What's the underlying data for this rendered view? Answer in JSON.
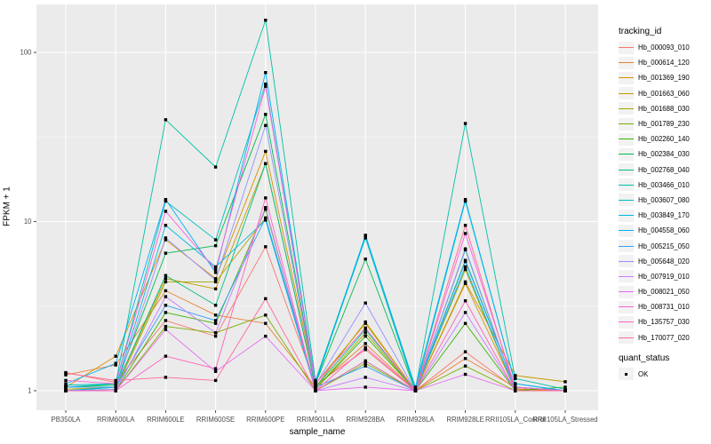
{
  "chart_data": {
    "type": "line",
    "title": "",
    "xlabel": "sample_name",
    "ylabel": "FPKM + 1",
    "y_scale": "log10",
    "y_ticks": [
      1,
      10,
      100
    ],
    "y_minor_ticks": [
      3.162,
      31.623
    ],
    "ylim": [
      0.78,
      185
    ],
    "grid": "on",
    "point_shape": "square",
    "point_color": "#000000",
    "categories": [
      "PB350LA",
      "RRIM600LA",
      "RRIM600LE",
      "RRIM600SE",
      "RRIM600PE",
      "RRIM901LA",
      "RRIM928BA",
      "RRIM928LA",
      "RRIM928LE",
      "RRII105LA_Control",
      "RRII105LA_Stressed"
    ],
    "legend": {
      "title": "tracking_id",
      "position": "right"
    },
    "quant_legend": {
      "title": "quant_status",
      "items": [
        {
          "label": "OK",
          "shape": "square",
          "color": "#000000"
        }
      ]
    },
    "series": [
      {
        "name": "Hb_000093_010",
        "color": "#F8766D",
        "values": [
          1.28,
          1.12,
          2.6,
          2.1,
          7.1,
          1.08,
          1.75,
          1.0,
          1.7,
          1.03,
          1.0
        ]
      },
      {
        "name": "Hb_000614_120",
        "color": "#EA8331",
        "values": [
          1.24,
          1.42,
          3.9,
          2.8,
          2.5,
          1.05,
          1.9,
          1.0,
          1.55,
          1.05,
          1.0
        ]
      },
      {
        "name": "Hb_001369_190",
        "color": "#D89000",
        "values": [
          1.05,
          1.6,
          7.8,
          4.6,
          26,
          1.1,
          2.5,
          1.0,
          4.3,
          1.02,
          1.0
        ]
      },
      {
        "name": "Hb_001663_060",
        "color": "#C09B00",
        "values": [
          1.02,
          1.05,
          4.6,
          4.0,
          22,
          1.05,
          2.55,
          1.0,
          4.4,
          1.23,
          1.13
        ]
      },
      {
        "name": "Hb_001688_030",
        "color": "#A3A500",
        "values": [
          1.0,
          1.02,
          4.4,
          4.4,
          10.5,
          1.02,
          2.2,
          1.0,
          5.2,
          1.0,
          1.0
        ]
      },
      {
        "name": "Hb_001789_230",
        "color": "#7CAE00",
        "values": [
          1.0,
          1.0,
          2.4,
          2.2,
          2.8,
          1.0,
          1.45,
          1.0,
          1.4,
          1.0,
          1.0
        ]
      },
      {
        "name": "Hb_002260_140",
        "color": "#39B600",
        "values": [
          1.0,
          1.0,
          2.9,
          2.5,
          11.8,
          1.02,
          2.1,
          1.0,
          2.5,
          1.0,
          1.05
        ]
      },
      {
        "name": "Hb_002384_030",
        "color": "#00BB4E",
        "values": [
          1.05,
          1.08,
          6.5,
          7.2,
          43,
          1.1,
          6.0,
          1.0,
          5.9,
          1.05,
          1.0
        ]
      },
      {
        "name": "Hb_002768_040",
        "color": "#00BF7D",
        "values": [
          1.0,
          1.05,
          4.8,
          3.2,
          22,
          1.05,
          2.3,
          1.0,
          6.8,
          1.0,
          1.0
        ]
      },
      {
        "name": "Hb_003466_010",
        "color": "#00C1A3",
        "values": [
          1.05,
          1.1,
          40,
          21,
          155,
          1.15,
          8.2,
          1.02,
          38,
          1.18,
          1.02
        ]
      },
      {
        "name": "Hb_003607_080",
        "color": "#00BFC4",
        "values": [
          1.08,
          1.1,
          13.2,
          7.8,
          65,
          1.12,
          8.0,
          1.0,
          13.2,
          1.1,
          1.0
        ]
      },
      {
        "name": "Hb_003849_170",
        "color": "#00BAE0",
        "values": [
          1.0,
          1.05,
          9.5,
          5.4,
          10.2,
          1.0,
          1.5,
          1.0,
          5.4,
          1.0,
          1.0
        ]
      },
      {
        "name": "Hb_004558_060",
        "color": "#00B0F6",
        "values": [
          1.1,
          1.45,
          13.5,
          5.0,
          76,
          1.1,
          8.3,
          1.05,
          13.5,
          1.1,
          1.0
        ]
      },
      {
        "name": "Hb_005215_050",
        "color": "#35A2FF",
        "values": [
          1.05,
          1.05,
          3.2,
          2.6,
          10.5,
          1.05,
          1.4,
          1.0,
          5.8,
          1.05,
          1.0
        ]
      },
      {
        "name": "Hb_005648_020",
        "color": "#9590FF",
        "values": [
          1.0,
          1.02,
          8.0,
          4.5,
          37,
          1.08,
          3.3,
          1.0,
          6.9,
          1.0,
          1.0
        ]
      },
      {
        "name": "Hb_007919_010",
        "color": "#C77CFF",
        "values": [
          1.0,
          1.0,
          3.6,
          2.2,
          12.1,
          1.0,
          1.2,
          1.0,
          2.9,
          1.0,
          1.0
        ]
      },
      {
        "name": "Hb_008021_050",
        "color": "#E76BF3",
        "values": [
          1.0,
          1.0,
          2.3,
          1.3,
          2.1,
          1.0,
          1.05,
          1.0,
          1.25,
          1.0,
          1.0
        ]
      },
      {
        "name": "Hb_008731_010",
        "color": "#FA62DB",
        "values": [
          1.15,
          1.1,
          11.5,
          5.2,
          63,
          1.1,
          2.35,
          1.0,
          8.5,
          1.05,
          1.0
        ]
      },
      {
        "name": "Hb_135757_030",
        "color": "#FF62BC",
        "values": [
          1.0,
          1.0,
          1.6,
          1.35,
          13.8,
          1.0,
          1.8,
          1.0,
          3.4,
          1.0,
          1.0
        ]
      },
      {
        "name": "Hb_170077_020",
        "color": "#FF6A98",
        "values": [
          1.27,
          1.15,
          1.2,
          1.15,
          3.5,
          1.0,
          1.5,
          1.0,
          9.5,
          1.0,
          1.0
        ]
      }
    ]
  },
  "colors": {
    "panel_bg": "#EBEBEB",
    "grid_major": "#FFFFFF",
    "grid_minor": "#F5F5F5",
    "tick_mark": "#333333",
    "tick_text": "#4D4D4D",
    "legend_key_bg": "#F2F2F2"
  }
}
